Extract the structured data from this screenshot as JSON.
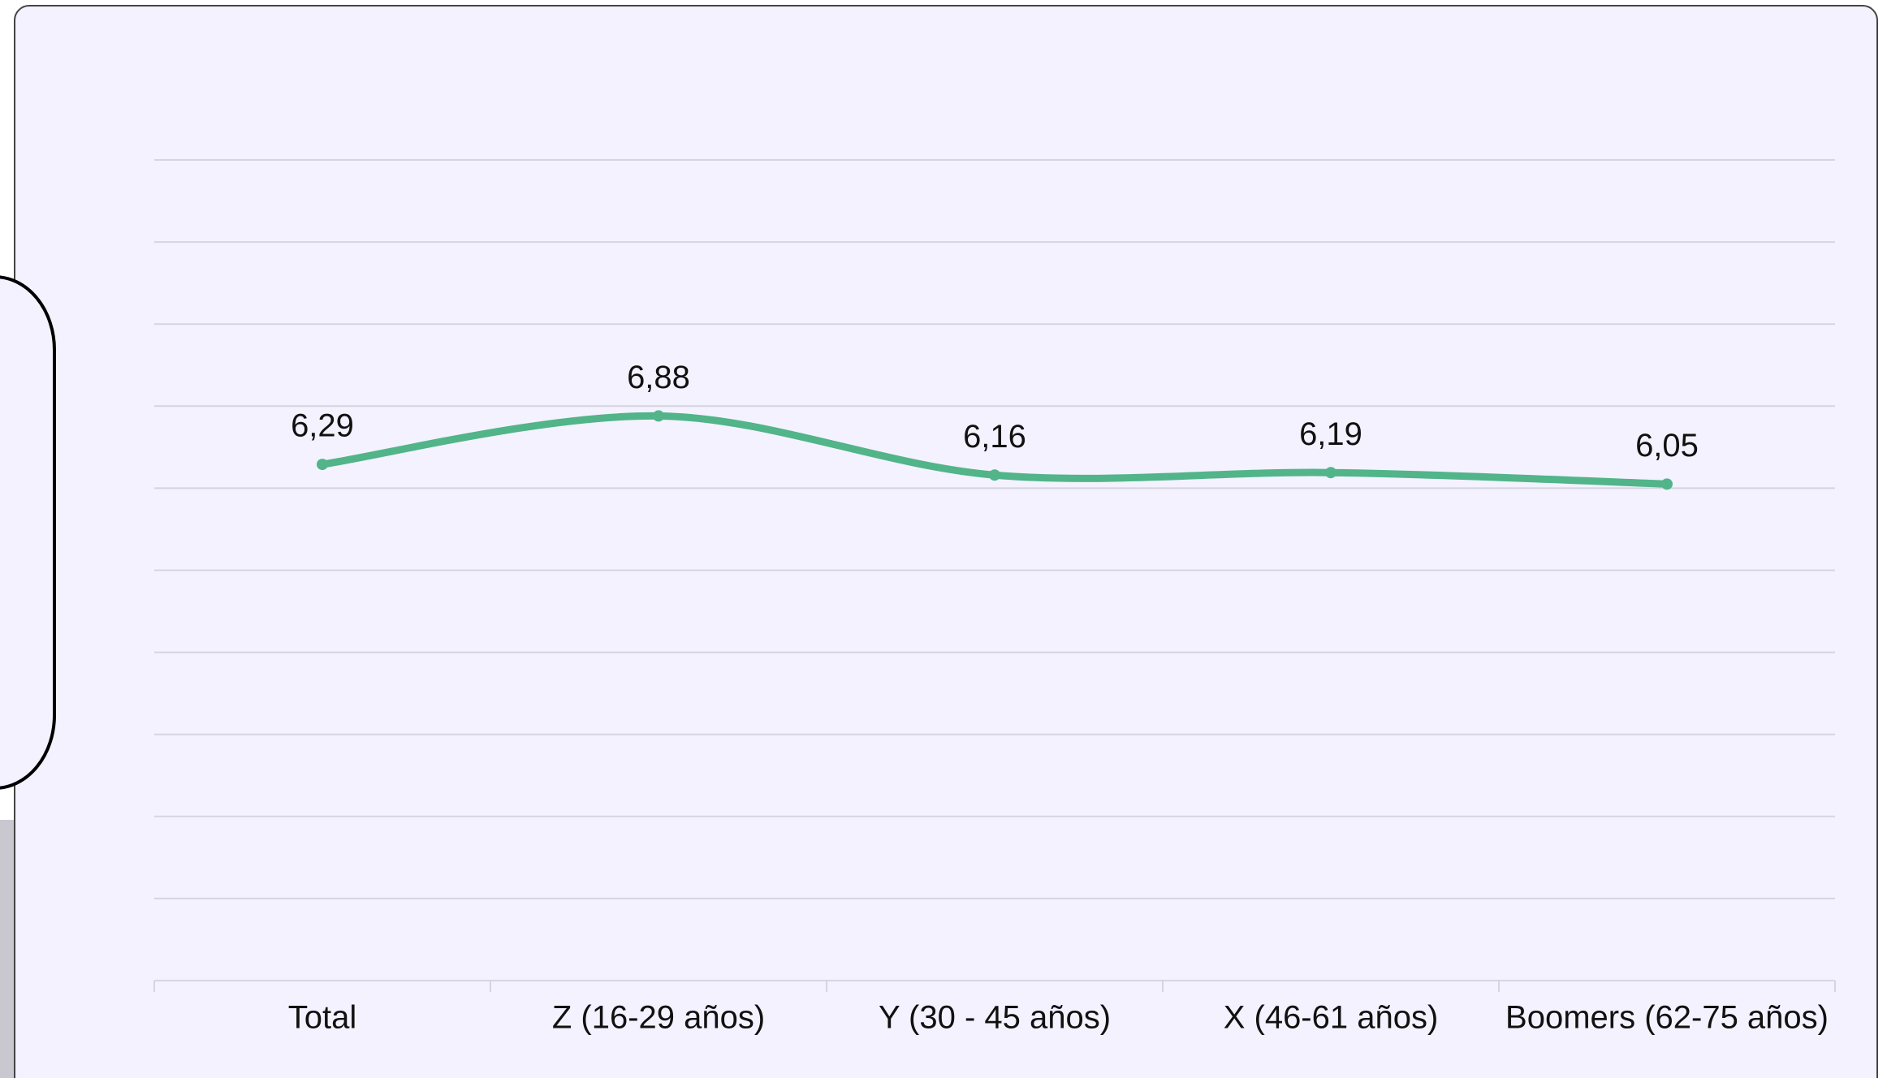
{
  "chart_data": {
    "type": "line",
    "categories": [
      "Total",
      "Z (16-29 años)",
      "Y (30 - 45 años)",
      "X (46-61 años)",
      "Boomers (62-75 años)"
    ],
    "values": [
      6.29,
      6.88,
      6.16,
      6.19,
      6.05
    ],
    "value_labels": [
      "6,29",
      "6,88",
      "6,16",
      "6,19",
      "6,05"
    ],
    "color": "#52b489",
    "ylim": [
      0,
      10
    ],
    "yticks": [
      0,
      1,
      2,
      3,
      4,
      5,
      6,
      7,
      8,
      9,
      10
    ],
    "grid": true
  }
}
